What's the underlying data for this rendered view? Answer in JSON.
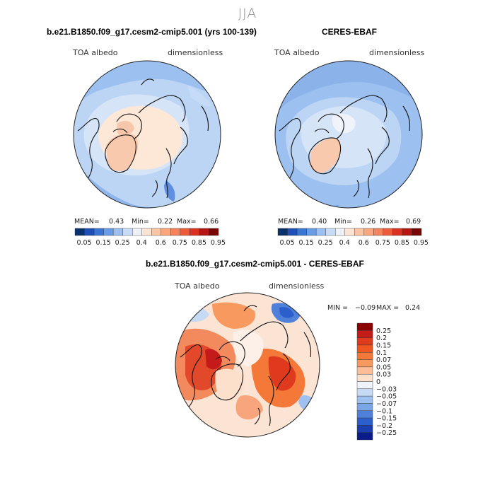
{
  "season": "JJA",
  "panels": [
    {
      "title": "b.e21.B1850.f09_g17.cesm2-cmip5.001 (yrs 100-139)",
      "var_label": "TOA albedo",
      "units_label": "dimensionless",
      "stats": {
        "mean_label": "MEAN=",
        "mean": "0.43",
        "min_label": "Min=",
        "min": "0.22",
        "max_label": "Max=",
        "max": "0.66"
      }
    },
    {
      "title": "CERES-EBAF",
      "var_label": "TOA albedo",
      "units_label": "dimensionless",
      "stats": {
        "mean_label": "MEAN=",
        "mean": "0.40",
        "min_label": "Min=",
        "min": "0.26",
        "max_label": "Max=",
        "max": "0.69"
      }
    },
    {
      "title": "b.e21.B1850.f09_g17.cesm2-cmip5.001 - CERES-EBAF",
      "var_label": "TOA albedo",
      "units_label": "dimensionless",
      "stats": {
        "min_label": "MIN =",
        "min": "−0.09",
        "max_label": "MAX =",
        "max": "0.24"
      }
    }
  ],
  "colorbar_abs": {
    "colors": [
      "#08306b",
      "#1e4fb8",
      "#3a74d4",
      "#6a9be6",
      "#9cbff0",
      "#c8dbf7",
      "#eef2f8",
      "#fde3d2",
      "#fbc4a4",
      "#f9a57e",
      "#f5825a",
      "#ef5a3a",
      "#dc3020",
      "#b51515",
      "#7a0505"
    ],
    "tick_labels": [
      "0.05",
      "0.15",
      "0.25",
      "0.4",
      "0.6",
      "0.75",
      "0.85",
      "0.95"
    ]
  },
  "colorbar_diff": {
    "colors": [
      "#8b0000",
      "#c41a1a",
      "#e03a1e",
      "#f0561f",
      "#f47838",
      "#f89a60",
      "#fbbe98",
      "#fde0cc",
      "#eef3fa",
      "#c6daf5",
      "#9ec1ef",
      "#7aa6e6",
      "#4f81da",
      "#2c5fcc",
      "#1a3db0",
      "#0a1c8a"
    ],
    "tick_labels": [
      "0.25",
      "0.2",
      "0.15",
      "0.1",
      "0.07",
      "0.05",
      "0.03",
      "0",
      "−0.03",
      "−0.05",
      "−0.07",
      "−0.1",
      "−0.15",
      "−0.2",
      "−0.25"
    ]
  },
  "chart_data": [
    {
      "type": "heatmap",
      "projection": "north polar stereographic",
      "title": "b.e21.B1850.f09_g17.cesm2-cmip5.001 (yrs 100-139)",
      "variable": "TOA albedo",
      "units": "dimensionless",
      "mean": 0.43,
      "min": 0.22,
      "max": 0.66,
      "levels": [
        0.05,
        0.1,
        0.15,
        0.2,
        0.25,
        0.3,
        0.4,
        0.5,
        0.6,
        0.7,
        0.75,
        0.8,
        0.85,
        0.9,
        0.95
      ]
    },
    {
      "type": "heatmap",
      "projection": "north polar stereographic",
      "title": "CERES-EBAF",
      "variable": "TOA albedo",
      "units": "dimensionless",
      "mean": 0.4,
      "min": 0.26,
      "max": 0.69,
      "levels": [
        0.05,
        0.1,
        0.15,
        0.2,
        0.25,
        0.3,
        0.4,
        0.5,
        0.6,
        0.7,
        0.75,
        0.8,
        0.85,
        0.9,
        0.95
      ]
    },
    {
      "type": "heatmap",
      "projection": "north polar stereographic",
      "title": "b.e21.B1850.f09_g17.cesm2-cmip5.001 - CERES-EBAF",
      "variable": "TOA albedo",
      "units": "dimensionless",
      "min": -0.09,
      "max": 0.24,
      "levels": [
        -0.25,
        -0.2,
        -0.15,
        -0.1,
        -0.07,
        -0.05,
        -0.03,
        0,
        0.03,
        0.05,
        0.07,
        0.1,
        0.15,
        0.2,
        0.25
      ]
    }
  ]
}
